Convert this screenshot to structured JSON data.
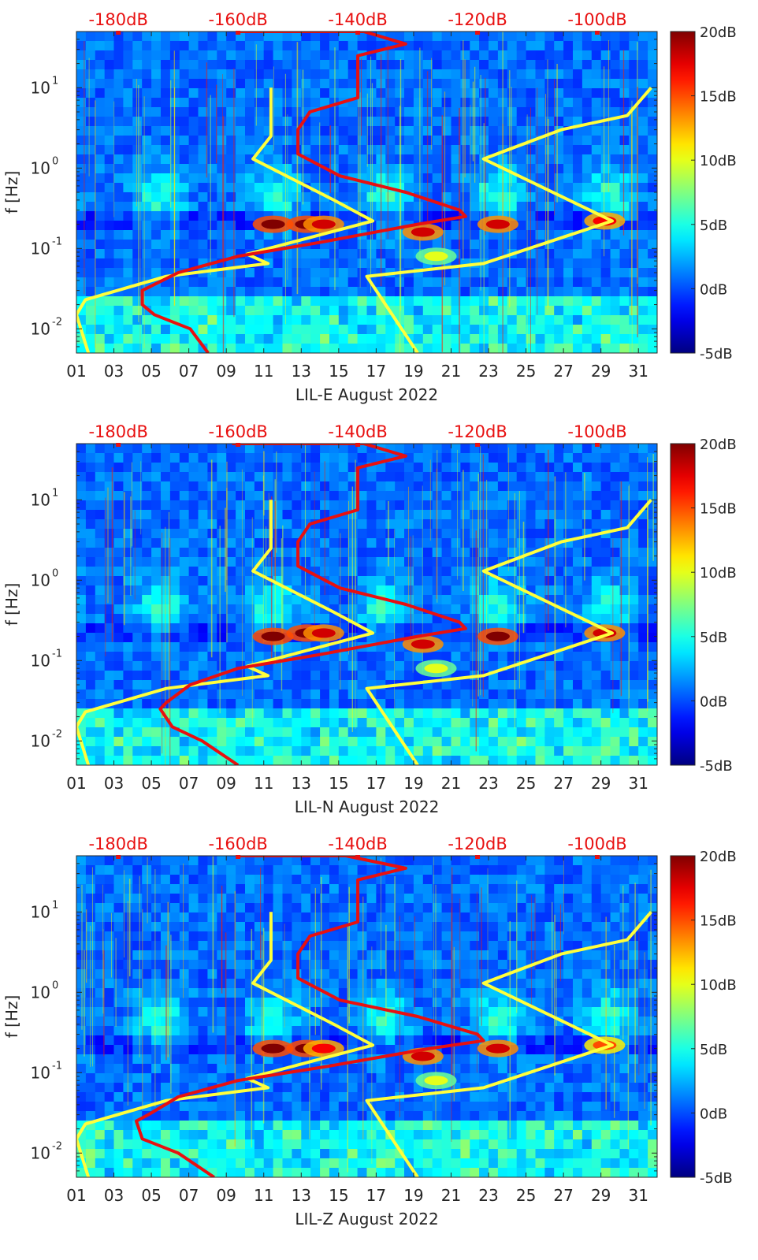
{
  "chart_data": [
    {
      "type": "heatmap",
      "title": "",
      "xlabel": "LIL-E August 2022",
      "ylabel": "f [Hz]",
      "xlim": [
        1,
        32
      ],
      "ylim": [
        0.005,
        50
      ],
      "yscale": "log",
      "x_ticks": [
        "01",
        "03",
        "05",
        "07",
        "09",
        "11",
        "13",
        "15",
        "17",
        "19",
        "21",
        "23",
        "25",
        "27",
        "29",
        "31"
      ],
      "y_ticks": [
        {
          "base": "10",
          "exp": "-2"
        },
        {
          "base": "10",
          "exp": "-1"
        },
        {
          "base": "10",
          "exp": "0"
        },
        {
          "base": "10",
          "exp": "1"
        }
      ],
      "top_axis_labels": [
        "-180dB",
        "-160dB",
        "-140dB",
        "-120dB",
        "-100dB"
      ],
      "top_axis_range_dB": [
        -187,
        -90
      ],
      "colorbar": {
        "min_dB": -5,
        "max_dB": 20,
        "ticks": [
          "-5dB",
          "0dB",
          "5dB",
          "10dB",
          "15dB",
          "20dB"
        ],
        "colormap": "jet"
      },
      "colors": {
        "noise_model": "#ffff3c",
        "median_psd": "#e81010"
      },
      "noise_models_dB": [
        {
          "name": "low-noise model",
          "points": [
            [
              -154.5,
              10
            ],
            [
              -154.5,
              2.5
            ],
            [
              -157.5,
              1.3
            ],
            [
              -144,
              0.4
            ],
            [
              -137.5,
              0.22
            ],
            [
              -158.5,
              0.085
            ],
            [
              -155,
              0.065
            ],
            [
              -172,
              0.045
            ],
            [
              -185.5,
              0.023
            ],
            [
              -187,
              0.015
            ],
            [
              -185,
              0.005
            ]
          ]
        },
        {
          "name": "high-noise model",
          "points": [
            [
              -91,
              10
            ],
            [
              -95,
              4.5
            ],
            [
              -106,
              3
            ],
            [
              -119,
              1.3
            ],
            [
              -97.5,
              0.22
            ],
            [
              -119,
              0.065
            ],
            [
              -138.5,
              0.045
            ],
            [
              -130,
              0.005
            ]
          ]
        }
      ],
      "median_psd_dB": [
        [
          -160,
          50
        ],
        [
          -139,
          50
        ],
        [
          -132,
          35
        ],
        [
          -140,
          25
        ],
        [
          -140,
          15
        ],
        [
          -140,
          7.5
        ],
        [
          -148,
          5
        ],
        [
          -150,
          3
        ],
        [
          -150,
          1.5
        ],
        [
          -143,
          0.8
        ],
        [
          -132,
          0.5
        ],
        [
          -123,
          0.3
        ],
        [
          -122,
          0.25
        ],
        [
          -130,
          0.2
        ],
        [
          -146,
          0.12
        ],
        [
          -160,
          0.08
        ],
        [
          -170,
          0.05
        ],
        [
          -176,
          0.03
        ],
        [
          -176,
          0.02
        ],
        [
          -174,
          0.015
        ],
        [
          -168,
          0.01
        ],
        [
          -165,
          0.005
        ]
      ],
      "features": [
        {
          "day": 11.5,
          "f": 0.2,
          "dB": 20
        },
        {
          "day": 13.3,
          "f": 0.2,
          "dB": 20
        },
        {
          "day": 14.2,
          "f": 0.2,
          "dB": 18
        },
        {
          "day": 19.5,
          "f": 0.16,
          "dB": 18
        },
        {
          "day": 23.5,
          "f": 0.2,
          "dB": 18
        },
        {
          "day": 29.2,
          "f": 0.22,
          "dB": 17
        },
        {
          "day": 20.2,
          "f": 0.08,
          "dB": 10
        }
      ]
    },
    {
      "type": "heatmap",
      "title": "",
      "xlabel": "LIL-N August 2022",
      "ylabel": "f [Hz]",
      "xlim": [
        1,
        32
      ],
      "ylim": [
        0.005,
        50
      ],
      "yscale": "log",
      "x_ticks": [
        "01",
        "03",
        "05",
        "07",
        "09",
        "11",
        "13",
        "15",
        "17",
        "19",
        "21",
        "23",
        "25",
        "27",
        "29",
        "31"
      ],
      "y_ticks": [
        {
          "base": "10",
          "exp": "-2"
        },
        {
          "base": "10",
          "exp": "-1"
        },
        {
          "base": "10",
          "exp": "0"
        },
        {
          "base": "10",
          "exp": "1"
        }
      ],
      "top_axis_labels": [
        "-180dB",
        "-160dB",
        "-140dB",
        "-120dB",
        "-100dB"
      ],
      "top_axis_range_dB": [
        -187,
        -90
      ],
      "colorbar": {
        "min_dB": -5,
        "max_dB": 20,
        "ticks": [
          "-5dB",
          "0dB",
          "5dB",
          "10dB",
          "15dB",
          "20dB"
        ],
        "colormap": "jet"
      },
      "colors": {
        "noise_model": "#ffff3c",
        "median_psd": "#e81010"
      },
      "noise_models_dB": [
        {
          "name": "low-noise model",
          "points": [
            [
              -154.5,
              10
            ],
            [
              -154.5,
              2.5
            ],
            [
              -157.5,
              1.3
            ],
            [
              -144,
              0.4
            ],
            [
              -137.5,
              0.22
            ],
            [
              -158.5,
              0.085
            ],
            [
              -155,
              0.065
            ],
            [
              -172,
              0.045
            ],
            [
              -185.5,
              0.023
            ],
            [
              -187,
              0.015
            ],
            [
              -185,
              0.005
            ]
          ]
        },
        {
          "name": "high-noise model",
          "points": [
            [
              -91,
              10
            ],
            [
              -95,
              4.5
            ],
            [
              -106,
              3
            ],
            [
              -119,
              1.3
            ],
            [
              -97.5,
              0.22
            ],
            [
              -119,
              0.065
            ],
            [
              -138.5,
              0.045
            ],
            [
              -130,
              0.005
            ]
          ]
        }
      ],
      "median_psd_dB": [
        [
          -161,
          50
        ],
        [
          -139,
          50
        ],
        [
          -132,
          35
        ],
        [
          -140,
          25
        ],
        [
          -140,
          15
        ],
        [
          -140,
          7.5
        ],
        [
          -148,
          5
        ],
        [
          -150,
          3
        ],
        [
          -150,
          1.5
        ],
        [
          -143,
          0.8
        ],
        [
          -132,
          0.5
        ],
        [
          -123,
          0.3
        ],
        [
          -122,
          0.25
        ],
        [
          -130,
          0.2
        ],
        [
          -146,
          0.12
        ],
        [
          -160,
          0.08
        ],
        [
          -168,
          0.05
        ],
        [
          -172,
          0.03
        ],
        [
          -173,
          0.025
        ],
        [
          -171,
          0.015
        ],
        [
          -166,
          0.01
        ],
        [
          -160,
          0.005
        ]
      ],
      "features": [
        {
          "day": 11.5,
          "f": 0.2,
          "dB": 20
        },
        {
          "day": 13.3,
          "f": 0.22,
          "dB": 20
        },
        {
          "day": 14.2,
          "f": 0.22,
          "dB": 18
        },
        {
          "day": 19.5,
          "f": 0.16,
          "dB": 18
        },
        {
          "day": 23.5,
          "f": 0.2,
          "dB": 20
        },
        {
          "day": 29.2,
          "f": 0.22,
          "dB": 18
        },
        {
          "day": 20.2,
          "f": 0.08,
          "dB": 10
        }
      ]
    },
    {
      "type": "heatmap",
      "title": "",
      "xlabel": "LIL-Z August 2022",
      "ylabel": "f [Hz]",
      "xlim": [
        1,
        32
      ],
      "ylim": [
        0.005,
        50
      ],
      "yscale": "log",
      "x_ticks": [
        "01",
        "03",
        "05",
        "07",
        "09",
        "11",
        "13",
        "15",
        "17",
        "19",
        "21",
        "23",
        "25",
        "27",
        "29",
        "31"
      ],
      "y_ticks": [
        {
          "base": "10",
          "exp": "-2"
        },
        {
          "base": "10",
          "exp": "-1"
        },
        {
          "base": "10",
          "exp": "0"
        },
        {
          "base": "10",
          "exp": "1"
        }
      ],
      "top_axis_labels": [
        "-180dB",
        "-160dB",
        "-140dB",
        "-120dB",
        "-100dB"
      ],
      "top_axis_range_dB": [
        -187,
        -90
      ],
      "colorbar": {
        "min_dB": -5,
        "max_dB": 20,
        "ticks": [
          "-5dB",
          "0dB",
          "5dB",
          "10dB",
          "15dB",
          "20dB"
        ],
        "colormap": "jet"
      },
      "colors": {
        "noise_model": "#ffff3c",
        "median_psd": "#e81010"
      },
      "noise_models_dB": [
        {
          "name": "low-noise model",
          "points": [
            [
              -154.5,
              10
            ],
            [
              -154.5,
              2.5
            ],
            [
              -157.5,
              1.3
            ],
            [
              -144,
              0.4
            ],
            [
              -137.5,
              0.22
            ],
            [
              -158.5,
              0.085
            ],
            [
              -155,
              0.065
            ],
            [
              -172,
              0.045
            ],
            [
              -185.5,
              0.023
            ],
            [
              -187,
              0.015
            ],
            [
              -185,
              0.005
            ]
          ]
        },
        {
          "name": "high-noise model",
          "points": [
            [
              -91,
              10
            ],
            [
              -95,
              4.5
            ],
            [
              -106,
              3
            ],
            [
              -119,
              1.3
            ],
            [
              -97.5,
              0.22
            ],
            [
              -119,
              0.065
            ],
            [
              -138.5,
              0.045
            ],
            [
              -130,
              0.005
            ]
          ]
        }
      ],
      "median_psd_dB": [
        [
          -160,
          50
        ],
        [
          -142,
          50
        ],
        [
          -132,
          35
        ],
        [
          -140,
          25
        ],
        [
          -140,
          15
        ],
        [
          -140,
          7.5
        ],
        [
          -148,
          5
        ],
        [
          -150,
          3
        ],
        [
          -150,
          1.5
        ],
        [
          -143,
          0.8
        ],
        [
          -130,
          0.5
        ],
        [
          -120,
          0.3
        ],
        [
          -119,
          0.25
        ],
        [
          -128,
          0.2
        ],
        [
          -145,
          0.12
        ],
        [
          -160,
          0.08
        ],
        [
          -170,
          0.05
        ],
        [
          -175,
          0.03
        ],
        [
          -177,
          0.025
        ],
        [
          -176,
          0.015
        ],
        [
          -170,
          0.01
        ],
        [
          -164,
          0.005
        ]
      ],
      "features": [
        {
          "day": 11.5,
          "f": 0.2,
          "dB": 20
        },
        {
          "day": 13.3,
          "f": 0.2,
          "dB": 20
        },
        {
          "day": 14.2,
          "f": 0.2,
          "dB": 17
        },
        {
          "day": 19.5,
          "f": 0.16,
          "dB": 18
        },
        {
          "day": 23.5,
          "f": 0.2,
          "dB": 18
        },
        {
          "day": 29.2,
          "f": 0.22,
          "dB": 15
        },
        {
          "day": 20.2,
          "f": 0.08,
          "dB": 10
        }
      ]
    }
  ]
}
